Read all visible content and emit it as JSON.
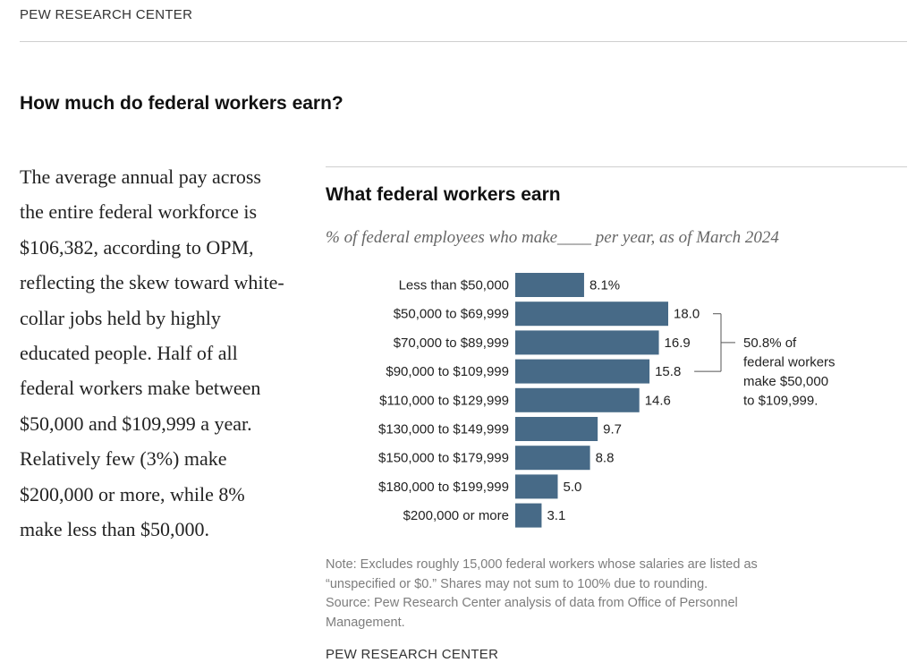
{
  "header": {
    "brand": "PEW RESEARCH CENTER"
  },
  "headline": "How much do federal workers earn?",
  "article": {
    "text": "The average annual pay across the entire federal workforce is $106,382, according to OPM, reflecting the skew toward white-collar jobs held by highly educated people. Half of all federal workers make between $50,000 and $109,999 a year. Relatively few (3%) make $200,000 or more, while 8% make less than $50,000."
  },
  "chart_data": {
    "type": "bar",
    "orientation": "horizontal",
    "title": "What federal workers earn",
    "subtitle": "% of federal employees who make____ per year, as of March 2024",
    "categories": [
      "Less than $50,000",
      "$50,000 to $69,999",
      "$70,000 to $89,999",
      "$90,000 to $109,999",
      "$110,000 to $129,999",
      "$130,000 to $149,999",
      "$150,000 to $179,999",
      "$180,000 to $199,999",
      "$200,000 or more"
    ],
    "values": [
      8.1,
      18.0,
      16.9,
      15.8,
      14.6,
      9.7,
      8.8,
      5.0,
      3.1
    ],
    "value_labels": [
      "8.1%",
      "18.0",
      "16.9",
      "15.8",
      "14.6",
      "9.7",
      "8.8",
      "5.0",
      "3.1"
    ],
    "bar_color": "#476a87",
    "xlim": [
      0,
      18.0
    ],
    "grid": false,
    "annotation": {
      "text_lines": [
        "50.8% of",
        "federal workers",
        "make $50,000",
        "to $109,999."
      ],
      "bracket_categories": [
        1,
        3
      ]
    },
    "note_lines": [
      "Note: Excludes roughly 15,000 federal workers whose salaries are listed as",
      "“unspecified or $0.” Shares may not sum to 100% due to rounding.",
      "Source: Pew Research Center analysis of data from Office of Personnel",
      "Management."
    ],
    "source_brand": "PEW RESEARCH CENTER"
  }
}
